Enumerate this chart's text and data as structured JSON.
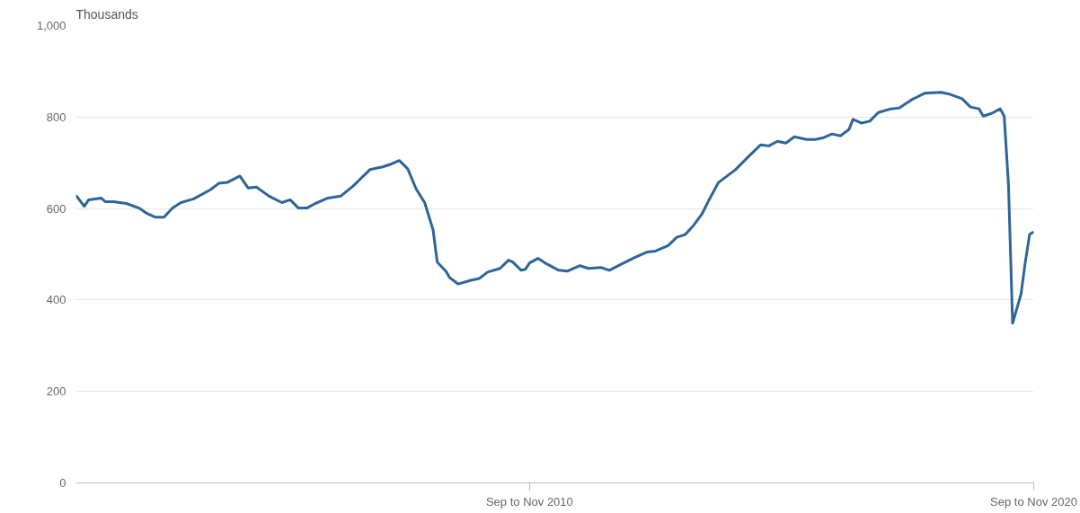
{
  "chart_data": {
    "type": "line",
    "ylabel": "Thousands",
    "x": [
      "2001-10",
      "2001-12",
      "2002-01",
      "2002-04",
      "2002-05",
      "2002-07",
      "2002-10",
      "2003-01",
      "2003-03",
      "2003-05",
      "2003-07",
      "2003-09",
      "2003-11",
      "2004-02",
      "2004-06",
      "2004-08",
      "2004-10",
      "2005-01",
      "2005-03",
      "2005-05",
      "2005-08",
      "2005-11",
      "2006-01",
      "2006-03",
      "2006-05",
      "2006-07",
      "2006-10",
      "2007-01",
      "2007-04",
      "2007-06",
      "2007-08",
      "2007-11",
      "2008-01",
      "2008-03",
      "2008-05",
      "2008-07",
      "2008-09",
      "2008-11",
      "2008-12",
      "2009-02",
      "2009-03",
      "2009-05",
      "2009-08",
      "2009-10",
      "2009-12",
      "2010-03",
      "2010-05",
      "2010-06",
      "2010-08",
      "2010-09",
      "2010-10",
      "2010-12",
      "2011-02",
      "2011-05",
      "2011-07",
      "2011-10",
      "2011-12",
      "2012-03",
      "2012-05",
      "2012-08",
      "2012-11",
      "2013-02",
      "2013-04",
      "2013-07",
      "2013-09",
      "2013-11",
      "2014-01",
      "2014-03",
      "2014-05",
      "2014-07",
      "2014-11",
      "2015-02",
      "2015-05",
      "2015-07",
      "2015-09",
      "2015-11",
      "2016-01",
      "2016-04",
      "2016-06",
      "2016-08",
      "2016-10",
      "2016-12",
      "2017-02",
      "2017-03",
      "2017-05",
      "2017-07",
      "2017-09",
      "2017-12",
      "2018-02",
      "2018-05",
      "2018-08",
      "2018-12",
      "2019-02",
      "2019-05",
      "2019-07",
      "2019-09",
      "2019-10",
      "2019-12",
      "2020-02",
      "2020-03",
      "2020-04",
      "2020-05",
      "2020-07",
      "2020-08",
      "2020-09",
      "2020-10"
    ],
    "series": [
      {
        "color": "#2e6599",
        "values": [
          629,
          605,
          619,
          623,
          615,
          615,
          611,
          601,
          589,
          581,
          581,
          601,
          613,
          621,
          641,
          655,
          657,
          671,
          645,
          647,
          627,
          613,
          619,
          601,
          601,
          611,
          623,
          627,
          649,
          667,
          685,
          691,
          697,
          705,
          687,
          643,
          613,
          553,
          483,
          463,
          449,
          435,
          443,
          447,
          461,
          469,
          487,
          483,
          465,
          467,
          481,
          491,
          479,
          465,
          463,
          475,
          469,
          471,
          465,
          479,
          493,
          505,
          507,
          519,
          537,
          543,
          563,
          587,
          623,
          657,
          685,
          713,
          739,
          737,
          747,
          743,
          757,
          751,
          751,
          755,
          763,
          759,
          773,
          795,
          787,
          791,
          810,
          818,
          820,
          838,
          852,
          854,
          850,
          840,
          822,
          818,
          802,
          808,
          818,
          802,
          653,
          349,
          413,
          483,
          543,
          549
        ]
      }
    ],
    "xlim": [
      "2001-10",
      "2020-10"
    ],
    "xticks": [
      {
        "value": "2010-10",
        "label": "Sep to Nov 2010"
      },
      {
        "value": "2020-10",
        "label": "Sep to Nov 2020"
      }
    ],
    "ylim": [
      0,
      1000
    ],
    "yticks": [
      0,
      200,
      400,
      600,
      800,
      {
        "value": 1000,
        "label": "1,000"
      }
    ],
    "grid": "y",
    "marker": "none",
    "line_style": "solid"
  }
}
